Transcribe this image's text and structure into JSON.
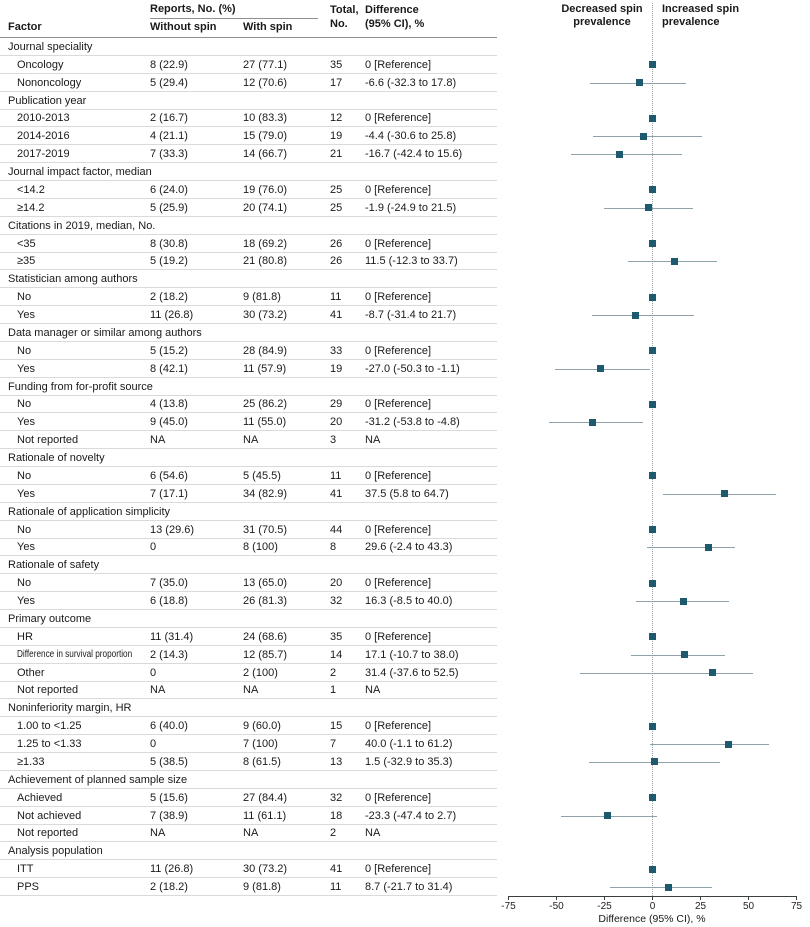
{
  "figure": {
    "header": {
      "factor": "Factor",
      "reports_group": "Reports, No. (%)",
      "without": "Without spin",
      "with": "With spin",
      "total1": "Total,",
      "total2": "No.",
      "diff1": "Difference",
      "diff2": "(95% CI), %"
    },
    "plot_header": {
      "left1": "Decreased spin",
      "left2": "prevalence",
      "right1": "Increased spin",
      "right2": "prevalence"
    }
  },
  "chart_data": {
    "type": "scatter",
    "variant": "forest-plot",
    "xlabel": "Difference (95% CI), %",
    "xlim": [
      -75,
      75
    ],
    "xticks": [
      -75,
      -50,
      -25,
      0,
      25,
      50,
      75
    ],
    "grid": false,
    "zero_line": 0,
    "marker_color": "#1d5a6e",
    "ci_color": "#8fa1aa",
    "rows": [
      {
        "group": true,
        "factor": "Journal speciality"
      },
      {
        "factor": "Oncology",
        "without": "8 (22.9)",
        "withspin": "27 (77.1)",
        "total": "35",
        "diff": "0 [Reference]",
        "est": 0,
        "ref": true
      },
      {
        "factor": "Nononcology",
        "without": "5 (29.4)",
        "withspin": "12 (70.6)",
        "total": "17",
        "diff": "-6.6 (-32.3 to 17.8)",
        "est": -6.6,
        "lo": -32.3,
        "hi": 17.8
      },
      {
        "group": true,
        "factor": "Publication year"
      },
      {
        "factor": "2010-2013",
        "without": "2 (16.7)",
        "withspin": "10 (83.3)",
        "total": "12",
        "diff": "0 [Reference]",
        "est": 0,
        "ref": true
      },
      {
        "factor": "2014-2016",
        "without": "4 (21.1)",
        "withspin": "15 (79.0)",
        "total": "19",
        "diff": "-4.4 (-30.6 to 25.8)",
        "est": -4.4,
        "lo": -30.6,
        "hi": 25.8
      },
      {
        "factor": "2017-2019",
        "without": "7 (33.3)",
        "withspin": "14 (66.7)",
        "total": "21",
        "diff": "-16.7 (-42.4 to 15.6)",
        "est": -16.7,
        "lo": -42.4,
        "hi": 15.6
      },
      {
        "group": true,
        "factor": "Journal impact factor, median"
      },
      {
        "factor": "<14.2",
        "without": "6 (24.0)",
        "withspin": "19 (76.0)",
        "total": "25",
        "diff": "0 [Reference]",
        "est": 0,
        "ref": true
      },
      {
        "factor": "≥14.2",
        "without": "5 (25.9)",
        "withspin": "20 (74.1)",
        "total": "25",
        "diff": "-1.9 (-24.9 to 21.5)",
        "est": -1.9,
        "lo": -24.9,
        "hi": 21.5
      },
      {
        "group": true,
        "factor": "Citations in 2019, median, No."
      },
      {
        "factor": "<35",
        "without": "8 (30.8)",
        "withspin": "18 (69.2)",
        "total": "26",
        "diff": "0 [Reference]",
        "est": 0,
        "ref": true
      },
      {
        "factor": "≥35",
        "without": "5 (19.2)",
        "withspin": "21 (80.8)",
        "total": "26",
        "diff": "11.5 (-12.3 to 33.7)",
        "est": 11.5,
        "lo": -12.3,
        "hi": 33.7
      },
      {
        "group": true,
        "factor": "Statistician among authors"
      },
      {
        "factor": "No",
        "without": "2 (18.2)",
        "withspin": "9 (81.8)",
        "total": "11",
        "diff": "0 [Reference]",
        "est": 0,
        "ref": true
      },
      {
        "factor": "Yes",
        "without": "11 (26.8)",
        "withspin": "30 (73.2)",
        "total": "41",
        "diff": "-8.7 (-31.4 to 21.7)",
        "est": -8.7,
        "lo": -31.4,
        "hi": 21.7
      },
      {
        "group": true,
        "factor": "Data manager or similar among authors"
      },
      {
        "factor": "No",
        "without": "5 (15.2)",
        "withspin": "28 (84.9)",
        "total": "33",
        "diff": "0 [Reference]",
        "est": 0,
        "ref": true
      },
      {
        "factor": "Yes",
        "without": "8 (42.1)",
        "withspin": "11 (57.9)",
        "total": "19",
        "diff": "-27.0 (-50.3 to -1.1)",
        "est": -27.0,
        "lo": -50.3,
        "hi": -1.1
      },
      {
        "group": true,
        "factor": "Funding from for-profit source"
      },
      {
        "factor": "No",
        "without": "4 (13.8)",
        "withspin": "25 (86.2)",
        "total": "29",
        "diff": "0 [Reference]",
        "est": 0,
        "ref": true
      },
      {
        "factor": "Yes",
        "without": "9 (45.0)",
        "withspin": "11 (55.0)",
        "total": "20",
        "diff": "-31.2 (-53.8 to -4.8)",
        "est": -31.2,
        "lo": -53.8,
        "hi": -4.8
      },
      {
        "factor": "Not reported",
        "without": "NA",
        "withspin": "NA",
        "total": "3",
        "diff": "NA"
      },
      {
        "group": true,
        "factor": "Rationale of novelty"
      },
      {
        "factor": "No",
        "without": "6 (54.6)",
        "withspin": "5 (45.5)",
        "total": "11",
        "diff": "0 [Reference]",
        "est": 0,
        "ref": true
      },
      {
        "factor": "Yes",
        "without": "7 (17.1)",
        "withspin": "34 (82.9)",
        "total": "41",
        "diff": "37.5 (5.8 to 64.7)",
        "est": 37.5,
        "lo": 5.8,
        "hi": 64.7
      },
      {
        "group": true,
        "factor": "Rationale of application simplicity"
      },
      {
        "factor": "No",
        "without": "13 (29.6)",
        "withspin": "31 (70.5)",
        "total": "44",
        "diff": "0 [Reference]",
        "est": 0,
        "ref": true
      },
      {
        "factor": "Yes",
        "without": "0",
        "withspin": "8 (100)",
        "total": "8",
        "diff": "29.6 (-2.4 to 43.3)",
        "est": 29.6,
        "lo": -2.4,
        "hi": 43.3
      },
      {
        "group": true,
        "factor": "Rationale of safety"
      },
      {
        "factor": "No",
        "without": "7 (35.0)",
        "withspin": "13 (65.0)",
        "total": "20",
        "diff": "0 [Reference]",
        "est": 0,
        "ref": true
      },
      {
        "factor": "Yes",
        "without": "6 (18.8)",
        "withspin": "26 (81.3)",
        "total": "32",
        "diff": "16.3 (-8.5 to 40.0)",
        "est": 16.3,
        "lo": -8.5,
        "hi": 40.0
      },
      {
        "group": true,
        "factor": "Primary outcome"
      },
      {
        "factor": "HR",
        "without": "11 (31.4)",
        "withspin": "24 (68.6)",
        "total": "35",
        "diff": "0 [Reference]",
        "est": 0,
        "ref": true
      },
      {
        "factor": "Difference in survival proportion",
        "without": "2 (14.3)",
        "withspin": "12 (85.7)",
        "total": "14",
        "diff": "17.1 (-10.7 to 38.0)",
        "est": 17.1,
        "lo": -10.7,
        "hi": 38.0
      },
      {
        "factor": "Other",
        "without": "0",
        "withspin": "2 (100)",
        "total": "2",
        "diff": "31.4 (-37.6 to 52.5)",
        "est": 31.4,
        "lo": -37.6,
        "hi": 52.5
      },
      {
        "factor": "Not reported",
        "without": "NA",
        "withspin": "NA",
        "total": "1",
        "diff": "NA"
      },
      {
        "group": true,
        "factor": "Noninferiority margin, HR"
      },
      {
        "factor": "1.00 to <1.25",
        "without": "6 (40.0)",
        "withspin": "9 (60.0)",
        "total": "15",
        "diff": "0 [Reference]",
        "est": 0,
        "ref": true
      },
      {
        "factor": "1.25 to <1.33",
        "without": "0",
        "withspin": "7 (100)",
        "total": "7",
        "diff": "40.0 (-1.1 to 61.2)",
        "est": 40.0,
        "lo": -1.1,
        "hi": 61.2
      },
      {
        "factor": "≥1.33",
        "without": "5 (38.5)",
        "withspin": "8 (61.5)",
        "total": "13",
        "diff": "1.5 (-32.9 to 35.3)",
        "est": 1.5,
        "lo": -32.9,
        "hi": 35.3
      },
      {
        "group": true,
        "factor": "Achievement of planned sample size"
      },
      {
        "factor": "Achieved",
        "without": "5 (15.6)",
        "withspin": "27 (84.4)",
        "total": "32",
        "diff": "0 [Reference]",
        "est": 0,
        "ref": true
      },
      {
        "factor": "Not achieved",
        "without": "7 (38.9)",
        "withspin": "11 (61.1)",
        "total": "18",
        "diff": "-23.3 (-47.4 to 2.7)",
        "est": -23.3,
        "lo": -47.4,
        "hi": 2.7
      },
      {
        "factor": "Not reported",
        "without": "NA",
        "withspin": "NA",
        "total": "2",
        "diff": "NA"
      },
      {
        "group": true,
        "factor": "Analysis population"
      },
      {
        "factor": "ITT",
        "without": "11 (26.8)",
        "withspin": "30 (73.2)",
        "total": "41",
        "diff": "0 [Reference]",
        "est": 0,
        "ref": true
      },
      {
        "factor": "PPS",
        "without": "2 (18.2)",
        "withspin": "9 (81.8)",
        "total": "11",
        "diff": "8.7 (-21.7 to 31.4)",
        "est": 8.7,
        "lo": -21.7,
        "hi": 31.4
      }
    ]
  }
}
